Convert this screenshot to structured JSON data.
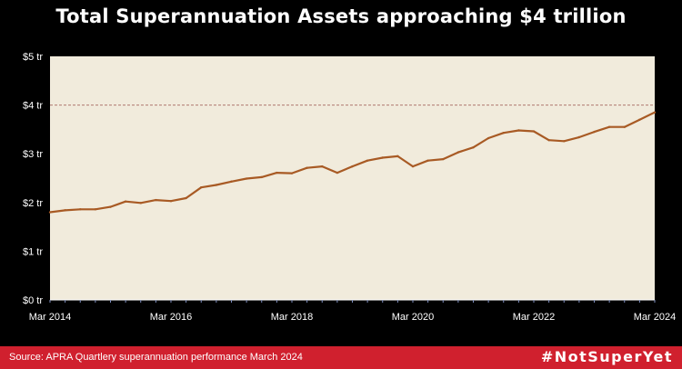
{
  "header": {
    "title": "Total Superannuation Assets approaching $4 trillion"
  },
  "footer": {
    "source": "Source: APRA Quartlery superannuation performance March 2024",
    "hashtag": "#NotSuperYet"
  },
  "colors": {
    "background": "#000000",
    "plot_area": "#f1ebdc",
    "line": "#a85a24",
    "reference_line": "#b07a72",
    "footer": "#d0202e",
    "text": "#ffffff"
  },
  "chart_data": {
    "type": "line",
    "title": "Total Superannuation Assets approaching $4 trillion",
    "xlabel": "",
    "ylabel": "",
    "ylim": [
      0,
      5
    ],
    "y_ticks": [
      {
        "value": 0,
        "label": "$0 tr"
      },
      {
        "value": 1,
        "label": "$1 tr"
      },
      {
        "value": 2,
        "label": "$2 tr"
      },
      {
        "value": 3,
        "label": "$3 tr"
      },
      {
        "value": 4,
        "label": "$4 tr"
      },
      {
        "value": 5,
        "label": "$5 tr"
      }
    ],
    "x_tick_labels": [
      "Mar 2014",
      "Mar 2016",
      "Mar 2018",
      "Mar 2020",
      "Mar 2022",
      "Mar 2024"
    ],
    "reference_line": {
      "value": 4,
      "style": "dashed"
    },
    "grid": false,
    "series": [
      {
        "values": [
          1.8,
          1.84,
          1.86,
          1.86,
          1.91,
          2.02,
          1.99,
          2.05,
          2.03,
          2.09,
          2.31,
          2.36,
          2.43,
          2.49,
          2.52,
          2.61,
          2.6,
          2.71,
          2.74,
          2.61,
          2.74,
          2.86,
          2.92,
          2.95,
          2.74,
          2.86,
          2.89,
          3.03,
          3.13,
          3.32,
          3.43,
          3.48,
          3.46,
          3.28,
          3.26,
          3.34,
          3.45,
          3.55,
          3.55,
          3.7,
          3.85
        ]
      }
    ]
  }
}
